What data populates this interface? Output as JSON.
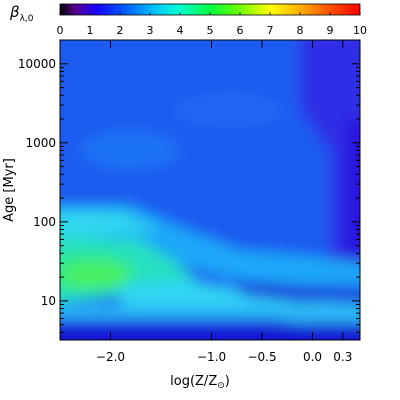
{
  "chart_data": {
    "type": "heatmap",
    "title": "",
    "colorbar": {
      "label": "β",
      "label_sub": "λ,0",
      "min": 0,
      "max": 10,
      "ticks": [
        "0",
        "1",
        "2",
        "3",
        "4",
        "5",
        "6",
        "7",
        "8",
        "9",
        "10"
      ],
      "colormap": "rainbow",
      "placement": "top"
    },
    "x_axis": {
      "label": "log(Z/Z",
      "label_sub": "⊙",
      "label_close": ")",
      "range": [
        -2.5,
        0.47
      ],
      "ticks": [
        {
          "value": -2.0,
          "label": "−2.0"
        },
        {
          "value": -1.0,
          "label": "−1.0"
        },
        {
          "value": -0.5,
          "label": "−0.5"
        },
        {
          "value": 0.0,
          "label": "0.0"
        },
        {
          "value": 0.3,
          "label": "0.3"
        }
      ]
    },
    "y_axis": {
      "label": "Age [Myr]",
      "scale": "log",
      "range": [
        3.2,
        20000
      ],
      "ticks": [
        {
          "value": 10,
          "label": "10"
        },
        {
          "value": 100,
          "label": "100"
        },
        {
          "value": 1000,
          "label": "1000"
        },
        {
          "value": 10000,
          "label": "10000"
        }
      ]
    },
    "grid": false,
    "regions": [
      {
        "region": "low-Z young ages (log Z ≈ −2.5 to −1.7, age ≈ 10–50 Myr)",
        "value": 5.2
      },
      {
        "region": "band at age ≈ 50–100 Myr, log Z < −1.3",
        "value": 3.2
      },
      {
        "region": "diagonal band from log Z ≈ −1.5 to 0.47 at age ≈ 5–20 Myr",
        "value": 3.0
      },
      {
        "region": "age ≈ 5 Myr, all metallicities",
        "value": 3.3
      },
      {
        "region": "age < 4 Myr",
        "value": 1.2
      },
      {
        "region": "ages > 100 Myr, broad background",
        "value": 2.0
      },
      {
        "region": "high Z (log Z > 0), ages > 100 Myr",
        "value": 1.4
      }
    ]
  }
}
